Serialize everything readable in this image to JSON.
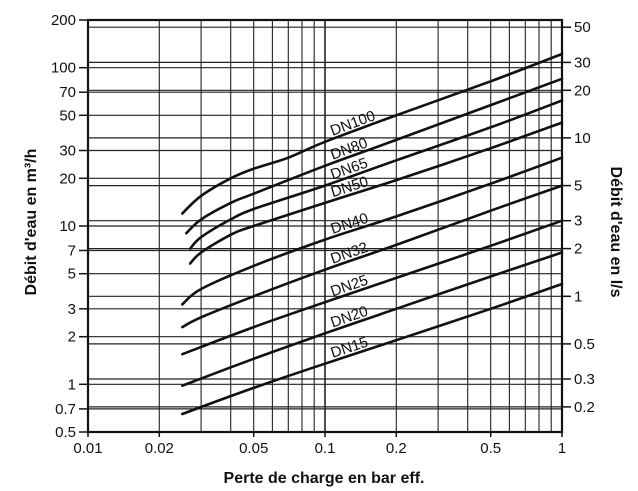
{
  "chart_data": {
    "type": "line",
    "xlabel": "Perte de charge en bar eff.",
    "ylabel": "Débit d'eau en m³/h",
    "y2label": "Débit d'eau en l/s",
    "x_scale": "log",
    "y_scale": "log",
    "xlim": [
      0.01,
      1
    ],
    "ylim": [
      0.5,
      200
    ],
    "grid": true,
    "x_ticks": [
      {
        "value": 0.01,
        "label": "0.01"
      },
      {
        "value": 0.02,
        "label": "0.02"
      },
      {
        "value": 0.05,
        "label": "0.05"
      },
      {
        "value": 0.1,
        "label": "0.1"
      },
      {
        "value": 0.2,
        "label": "0.2"
      },
      {
        "value": 0.5,
        "label": "0.5"
      },
      {
        "value": 1,
        "label": "1"
      }
    ],
    "y_ticks": [
      {
        "value": 0.5,
        "label": "0.5"
      },
      {
        "value": 0.7,
        "label": "0.7"
      },
      {
        "value": 1,
        "label": "1"
      },
      {
        "value": 2,
        "label": "2"
      },
      {
        "value": 3,
        "label": "3"
      },
      {
        "value": 5,
        "label": "5"
      },
      {
        "value": 7,
        "label": "7"
      },
      {
        "value": 10,
        "label": "10"
      },
      {
        "value": 20,
        "label": "20"
      },
      {
        "value": 30,
        "label": "30"
      },
      {
        "value": 50,
        "label": "50"
      },
      {
        "value": 70,
        "label": "70"
      },
      {
        "value": 100,
        "label": "100"
      },
      {
        "value": 200,
        "label": "200"
      }
    ],
    "y2_ticks": [
      {
        "value": 0.2,
        "label": "0.2"
      },
      {
        "value": 0.3,
        "label": "0.3"
      },
      {
        "value": 0.5,
        "label": "0.5"
      },
      {
        "value": 1,
        "label": "1"
      },
      {
        "value": 2,
        "label": "2"
      },
      {
        "value": 3,
        "label": "3"
      },
      {
        "value": 5,
        "label": "5"
      },
      {
        "value": 10,
        "label": "10"
      },
      {
        "value": 20,
        "label": "20"
      },
      {
        "value": 30,
        "label": "30"
      },
      {
        "value": 50,
        "label": "50"
      }
    ],
    "series": [
      {
        "name": "DN15",
        "x": [
          0.025,
          0.05,
          0.1,
          0.2,
          0.5,
          1
        ],
        "y": [
          0.65,
          0.95,
          1.35,
          1.9,
          3.0,
          4.3
        ]
      },
      {
        "name": "DN20",
        "x": [
          0.025,
          0.05,
          0.1,
          0.2,
          0.5,
          1
        ],
        "y": [
          0.98,
          1.45,
          2.1,
          3.0,
          4.8,
          6.8
        ]
      },
      {
        "name": "DN25",
        "x": [
          0.025,
          0.05,
          0.1,
          0.2,
          0.5,
          1
        ],
        "y": [
          1.55,
          2.3,
          3.3,
          4.7,
          7.5,
          10.8
        ]
      },
      {
        "name": "DN32",
        "x": [
          0.025,
          0.03,
          0.05,
          0.1,
          0.2,
          0.5,
          1
        ],
        "y": [
          2.3,
          2.65,
          3.6,
          5.3,
          7.6,
          12.5,
          18
        ]
      },
      {
        "name": "DN40",
        "x": [
          0.025,
          0.03,
          0.05,
          0.1,
          0.2,
          0.5,
          1
        ],
        "y": [
          3.2,
          4.0,
          5.6,
          8.2,
          11.5,
          18.5,
          27
        ]
      },
      {
        "name": "DN50",
        "x": [
          0.027,
          0.03,
          0.04,
          0.05,
          0.1,
          0.2,
          0.5,
          1
        ],
        "y": [
          5.8,
          6.8,
          8.8,
          10.0,
          14,
          19.5,
          31,
          45
        ]
      },
      {
        "name": "DN65",
        "x": [
          0.027,
          0.03,
          0.04,
          0.05,
          0.1,
          0.2,
          0.5,
          1
        ],
        "y": [
          7.2,
          8.5,
          11,
          12.8,
          18,
          26,
          42,
          62
        ]
      },
      {
        "name": "DN80",
        "x": [
          0.026,
          0.03,
          0.04,
          0.05,
          0.1,
          0.2,
          0.5,
          1
        ],
        "y": [
          9.0,
          11,
          14,
          16,
          24,
          35,
          58,
          85
        ]
      },
      {
        "name": "DN100",
        "x": [
          0.025,
          0.03,
          0.04,
          0.05,
          0.07,
          0.1,
          0.2,
          0.5,
          1
        ],
        "y": [
          12,
          15.5,
          20,
          23,
          27,
          34,
          50,
          82,
          122
        ]
      }
    ]
  }
}
